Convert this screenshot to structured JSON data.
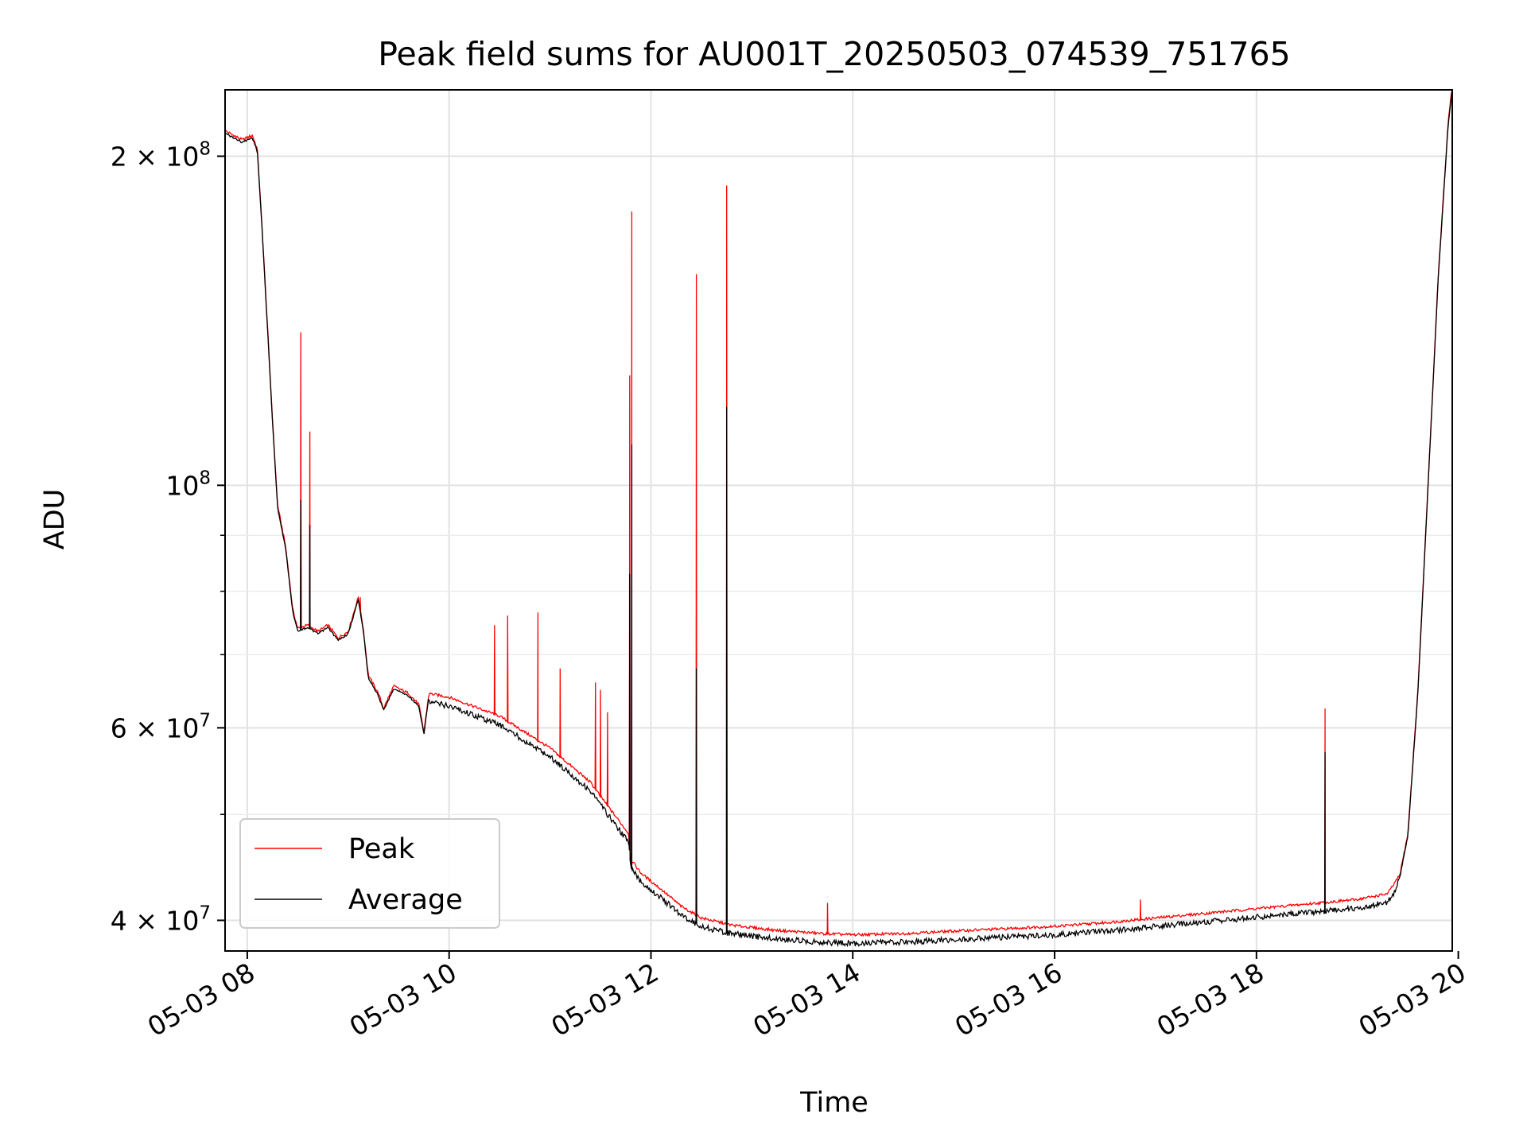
{
  "chart_data": {
    "type": "line",
    "title": "Peak field sums for AU001T_20250503_074539_751765",
    "xlabel": "Time",
    "ylabel": "ADU",
    "yscale": "log",
    "grid": true,
    "legend_position": "lower-left",
    "xlim_hours": [
      7.78,
      19.94
    ],
    "ylim": [
      37500000,
      230000000
    ],
    "x_ticks": [
      {
        "hour": 8,
        "label": "05-03 08"
      },
      {
        "hour": 10,
        "label": "05-03 10"
      },
      {
        "hour": 12,
        "label": "05-03 12"
      },
      {
        "hour": 14,
        "label": "05-03 14"
      },
      {
        "hour": 16,
        "label": "05-03 16"
      },
      {
        "hour": 18,
        "label": "05-03 18"
      },
      {
        "hour": 20,
        "label": "05-03 20"
      }
    ],
    "y_major_ticks": [
      {
        "value": 40000000,
        "mantissa": "4",
        "exponent": "7"
      },
      {
        "value": 60000000,
        "mantissa": "6",
        "exponent": "7"
      },
      {
        "value": 100000000,
        "mantissa": "",
        "exponent": "8"
      },
      {
        "value": 200000000,
        "mantissa": "2",
        "exponent": "8"
      }
    ],
    "y_minor_ticks": [
      50000000,
      70000000,
      80000000,
      90000000
    ],
    "series": [
      {
        "name": "Peak",
        "color": "#ff0000",
        "baseline": [
          [
            7.78,
            211000000
          ],
          [
            7.95,
            207000000
          ],
          [
            8.05,
            209000000
          ],
          [
            8.1,
            203000000
          ],
          [
            8.15,
            170000000
          ],
          [
            8.2,
            140000000
          ],
          [
            8.25,
            115000000
          ],
          [
            8.3,
            96000000
          ],
          [
            8.38,
            88000000
          ],
          [
            8.45,
            77000000
          ],
          [
            8.5,
            74000000
          ],
          [
            8.6,
            74500000
          ],
          [
            8.7,
            73500000
          ],
          [
            8.8,
            74500000
          ],
          [
            8.9,
            72500000
          ],
          [
            9.0,
            73500000
          ],
          [
            9.1,
            79000000
          ],
          [
            9.15,
            74000000
          ],
          [
            9.2,
            67000000
          ],
          [
            9.3,
            64500000
          ],
          [
            9.35,
            62500000
          ],
          [
            9.45,
            65500000
          ],
          [
            9.6,
            64500000
          ],
          [
            9.7,
            63000000
          ],
          [
            9.75,
            59500000
          ],
          [
            9.8,
            64500000
          ],
          [
            10.0,
            64000000
          ],
          [
            10.5,
            61500000
          ],
          [
            11.0,
            57500000
          ],
          [
            11.4,
            53500000
          ],
          [
            11.6,
            50500000
          ],
          [
            11.78,
            48000000
          ],
          [
            11.8,
            45500000
          ],
          [
            11.9,
            44200000
          ],
          [
            12.1,
            42700000
          ],
          [
            12.3,
            41200000
          ],
          [
            12.5,
            40200000
          ],
          [
            12.8,
            39600000
          ],
          [
            13.2,
            39200000
          ],
          [
            13.7,
            38900000
          ],
          [
            14.0,
            38800000
          ],
          [
            14.5,
            38900000
          ],
          [
            15.0,
            39100000
          ],
          [
            15.5,
            39300000
          ],
          [
            16.0,
            39500000
          ],
          [
            16.5,
            39800000
          ],
          [
            17.0,
            40200000
          ],
          [
            17.5,
            40600000
          ],
          [
            18.0,
            41000000
          ],
          [
            18.5,
            41400000
          ],
          [
            19.0,
            41800000
          ],
          [
            19.3,
            42300000
          ],
          [
            19.42,
            44000000
          ],
          [
            19.5,
            48000000
          ],
          [
            19.6,
            65000000
          ],
          [
            19.7,
            100000000
          ],
          [
            19.8,
            155000000
          ],
          [
            19.9,
            215000000
          ],
          [
            19.94,
            232000000
          ]
        ],
        "spikes": [
          [
            8.53,
            138000000
          ],
          [
            8.62,
            112000000
          ],
          [
            9.12,
            79000000
          ],
          [
            10.45,
            74500000
          ],
          [
            10.58,
            76000000
          ],
          [
            10.88,
            76500000
          ],
          [
            11.1,
            68000000
          ],
          [
            11.45,
            66000000
          ],
          [
            11.5,
            65000000
          ],
          [
            11.57,
            62000000
          ],
          [
            11.79,
            126000000
          ],
          [
            11.81,
            178000000
          ],
          [
            12.45,
            156000000
          ],
          [
            12.75,
            188000000
          ],
          [
            13.75,
            41500000
          ],
          [
            16.85,
            41800000
          ],
          [
            18.68,
            62500000
          ]
        ]
      },
      {
        "name": "Average",
        "color": "#000000",
        "spikes": [
          [
            8.53,
            97000000
          ],
          [
            8.62,
            92000000
          ],
          [
            11.79,
            83000000
          ],
          [
            11.81,
            109000000
          ],
          [
            12.45,
            68000000
          ],
          [
            12.75,
            118000000
          ],
          [
            18.68,
            57000000
          ]
        ]
      }
    ]
  }
}
